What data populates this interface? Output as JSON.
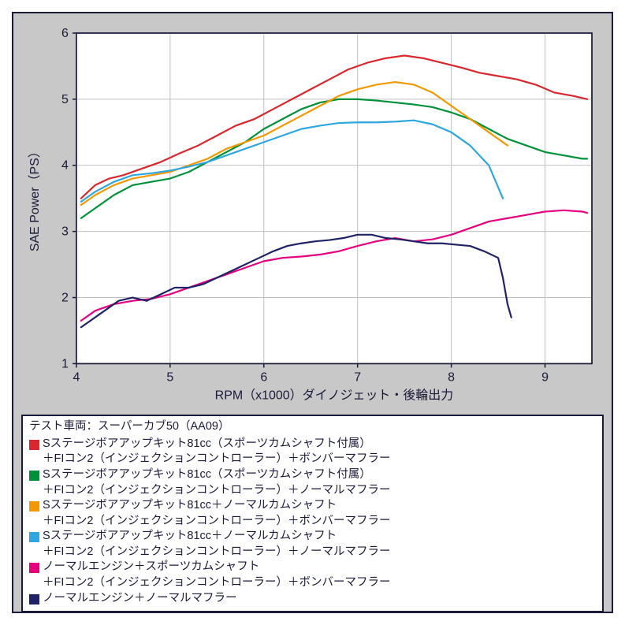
{
  "chart": {
    "type": "line",
    "background_color": "#c8c8c8",
    "plot_background": "#ffffff",
    "border_color": "#1a1a3a",
    "grid_color": "#c0c0c0",
    "axis_color": "#1a1a3a",
    "xlabel": "RPM（x1000）ダイノジェット・後輪出力",
    "ylabel": "SAE Power（PS）",
    "xlabel_fontsize": 16,
    "ylabel_fontsize": 16,
    "tick_fontsize": 16,
    "xlim": [
      4,
      9.5
    ],
    "ylim": [
      1,
      6
    ],
    "xticks": [
      4,
      5,
      6,
      7,
      8,
      9
    ],
    "yticks": [
      1,
      2,
      3,
      4,
      5,
      6
    ],
    "line_width": 2.2,
    "series": [
      {
        "name": "red",
        "color": "#d9272e",
        "x": [
          4.05,
          4.2,
          4.35,
          4.5,
          4.7,
          4.9,
          5.1,
          5.3,
          5.5,
          5.7,
          5.9,
          6.1,
          6.3,
          6.5,
          6.7,
          6.9,
          7.1,
          7.3,
          7.5,
          7.7,
          7.9,
          8.1,
          8.3,
          8.5,
          8.7,
          8.9,
          9.1,
          9.3,
          9.45
        ],
        "y": [
          3.5,
          3.7,
          3.8,
          3.85,
          3.95,
          4.05,
          4.18,
          4.3,
          4.45,
          4.6,
          4.7,
          4.85,
          5.0,
          5.15,
          5.3,
          5.45,
          5.55,
          5.62,
          5.66,
          5.62,
          5.55,
          5.48,
          5.4,
          5.35,
          5.3,
          5.22,
          5.1,
          5.05,
          5.0
        ]
      },
      {
        "name": "green",
        "color": "#00913a",
        "x": [
          4.05,
          4.2,
          4.4,
          4.6,
          4.8,
          5.0,
          5.2,
          5.4,
          5.6,
          5.8,
          6.0,
          6.2,
          6.4,
          6.6,
          6.8,
          7.0,
          7.2,
          7.4,
          7.6,
          7.8,
          8.0,
          8.2,
          8.4,
          8.6,
          8.8,
          9.0,
          9.2,
          9.4,
          9.45
        ],
        "y": [
          3.2,
          3.35,
          3.55,
          3.7,
          3.75,
          3.8,
          3.9,
          4.05,
          4.2,
          4.35,
          4.55,
          4.7,
          4.85,
          4.95,
          5.0,
          5.0,
          4.98,
          4.95,
          4.92,
          4.88,
          4.8,
          4.7,
          4.55,
          4.4,
          4.3,
          4.2,
          4.15,
          4.1,
          4.1
        ]
      },
      {
        "name": "orange",
        "color": "#f39800",
        "x": [
          4.05,
          4.2,
          4.4,
          4.6,
          4.8,
          5.0,
          5.2,
          5.4,
          5.6,
          5.8,
          6.0,
          6.2,
          6.4,
          6.6,
          6.8,
          7.0,
          7.2,
          7.4,
          7.6,
          7.8,
          8.0,
          8.2,
          8.4,
          8.6
        ],
        "y": [
          3.4,
          3.55,
          3.7,
          3.8,
          3.85,
          3.9,
          4.0,
          4.1,
          4.25,
          4.35,
          4.45,
          4.6,
          4.75,
          4.9,
          5.05,
          5.15,
          5.22,
          5.26,
          5.22,
          5.1,
          4.9,
          4.7,
          4.5,
          4.3
        ]
      },
      {
        "name": "cyan",
        "color": "#2ea7e0",
        "x": [
          4.05,
          4.2,
          4.4,
          4.6,
          4.8,
          5.0,
          5.2,
          5.4,
          5.6,
          5.8,
          6.0,
          6.2,
          6.4,
          6.6,
          6.8,
          7.0,
          7.2,
          7.4,
          7.6,
          7.8,
          8.0,
          8.2,
          8.4,
          8.55
        ],
        "y": [
          3.45,
          3.6,
          3.75,
          3.85,
          3.88,
          3.92,
          3.98,
          4.05,
          4.15,
          4.25,
          4.35,
          4.45,
          4.55,
          4.6,
          4.64,
          4.65,
          4.65,
          4.66,
          4.68,
          4.62,
          4.5,
          4.3,
          4.0,
          3.5
        ]
      },
      {
        "name": "magenta",
        "color": "#e4007f",
        "x": [
          4.05,
          4.2,
          4.4,
          4.6,
          4.8,
          5.0,
          5.2,
          5.4,
          5.6,
          5.8,
          6.0,
          6.2,
          6.4,
          6.6,
          6.8,
          7.0,
          7.2,
          7.4,
          7.6,
          7.8,
          8.0,
          8.2,
          8.4,
          8.6,
          8.8,
          9.0,
          9.2,
          9.4,
          9.45
        ],
        "y": [
          1.65,
          1.8,
          1.9,
          1.95,
          1.98,
          2.05,
          2.15,
          2.25,
          2.35,
          2.45,
          2.55,
          2.6,
          2.62,
          2.65,
          2.7,
          2.78,
          2.85,
          2.9,
          2.85,
          2.88,
          2.95,
          3.05,
          3.15,
          3.2,
          3.25,
          3.3,
          3.32,
          3.3,
          3.28
        ]
      },
      {
        "name": "navy",
        "color": "#1f2366",
        "x": [
          4.05,
          4.15,
          4.3,
          4.45,
          4.6,
          4.75,
          4.9,
          5.05,
          5.2,
          5.35,
          5.5,
          5.65,
          5.8,
          5.95,
          6.1,
          6.25,
          6.4,
          6.55,
          6.7,
          6.85,
          7.0,
          7.15,
          7.3,
          7.45,
          7.6,
          7.75,
          7.9,
          8.05,
          8.2,
          8.35,
          8.5,
          8.55,
          8.6,
          8.64
        ],
        "y": [
          1.55,
          1.65,
          1.8,
          1.95,
          2.0,
          1.95,
          2.05,
          2.15,
          2.15,
          2.2,
          2.3,
          2.4,
          2.5,
          2.6,
          2.7,
          2.78,
          2.82,
          2.85,
          2.87,
          2.9,
          2.95,
          2.95,
          2.9,
          2.88,
          2.85,
          2.82,
          2.82,
          2.8,
          2.78,
          2.7,
          2.6,
          2.3,
          1.9,
          1.7
        ]
      }
    ]
  },
  "legend": {
    "title": "テスト車両：スーパーカブ50（AA09）",
    "entries": [
      {
        "color": "#d9272e",
        "line1": "Sステージボアアップキット81cc（スポーツカムシャフト付属）",
        "line2": "＋FIコン2（インジェクションコントローラー）＋ボンバーマフラー"
      },
      {
        "color": "#00913a",
        "line1": "Sステージボアアップキット81cc（スポーツカムシャフト付属）",
        "line2": "＋FIコン2（インジェクションコントローラー）＋ノーマルマフラー"
      },
      {
        "color": "#f39800",
        "line1": "Sステージボアアップキット81cc＋ノーマルカムシャフト",
        "line2": "＋FIコン2（インジェクションコントローラー）＋ボンバーマフラー"
      },
      {
        "color": "#2ea7e0",
        "line1": "Sステージボアアップキット81cc＋ノーマルカムシャフト",
        "line2": "＋FIコン2（インジェクションコントローラー）＋ノーマルマフラー"
      },
      {
        "color": "#e4007f",
        "line1": "ノーマルエンジン＋スポーツカムシャフト",
        "line2": "＋FIコン2（インジェクションコントローラー）＋ボンバーマフラー"
      },
      {
        "color": "#1f2366",
        "line1": "ノーマルエンジン＋ノーマルマフラー",
        "line2": ""
      }
    ]
  }
}
